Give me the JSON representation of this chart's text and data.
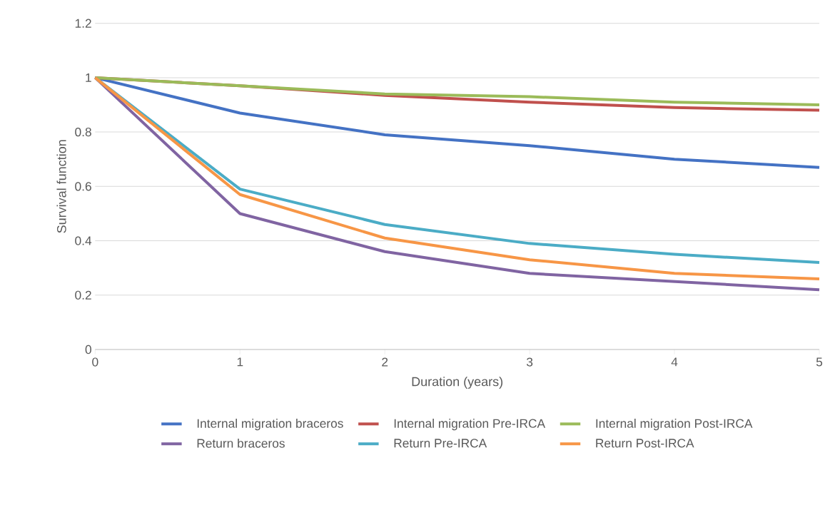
{
  "chart_data": {
    "type": "line",
    "xlabel": "Duration (years)",
    "ylabel": "Survival function",
    "x": [
      0,
      1,
      2,
      3,
      4,
      5
    ],
    "series": [
      {
        "name": "Internal migration braceros",
        "color": "#4472c4",
        "values": [
          1,
          0.87,
          0.79,
          0.75,
          0.7,
          0.67
        ]
      },
      {
        "name": "Internal migration Pre-IRCA",
        "color": "#c0504d",
        "values": [
          1,
          0.97,
          0.935,
          0.91,
          0.89,
          0.88
        ]
      },
      {
        "name": "Internal migration Post-IRCA",
        "color": "#9bbb59",
        "values": [
          1,
          0.97,
          0.94,
          0.93,
          0.91,
          0.9
        ]
      },
      {
        "name": "Return braceros",
        "color": "#8064a2",
        "values": [
          1,
          0.5,
          0.36,
          0.28,
          0.25,
          0.22
        ]
      },
      {
        "name": "Return Pre-IRCA",
        "color": "#4bacc6",
        "values": [
          1,
          0.59,
          0.46,
          0.39,
          0.35,
          0.32
        ]
      },
      {
        "name": "Return Post-IRCA",
        "color": "#f79646",
        "values": [
          1,
          0.57,
          0.41,
          0.33,
          0.28,
          0.26
        ]
      }
    ],
    "xlim": [
      0,
      5
    ],
    "xticks": [
      0,
      1,
      2,
      3,
      4,
      5
    ],
    "ylim": [
      0,
      1.2
    ],
    "yticks": [
      0,
      0.2,
      0.4,
      0.6,
      0.8,
      1,
      1.2
    ],
    "grid": "y",
    "legend": "bottom",
    "marker": "none",
    "line_style": "solid"
  }
}
